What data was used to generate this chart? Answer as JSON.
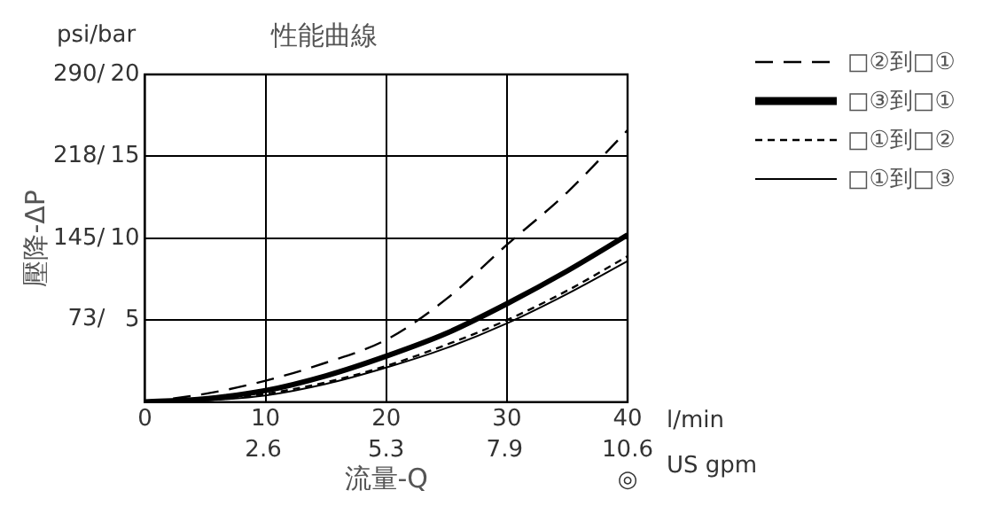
{
  "chart_data": {
    "type": "line",
    "title": "性能曲線",
    "xlabel": "流量-Q",
    "ylabel": "壓降-ΔP",
    "annotations": [
      "psi/bar",
      "l/min",
      "US gpm",
      "◎"
    ],
    "x": [
      0,
      5,
      10,
      15,
      20,
      25,
      30,
      35,
      40
    ],
    "series": [
      {
        "name": "□②到□①",
        "color": "#000000",
        "line_style": "dashed",
        "axis": "y2",
        "values": [
          0,
          0.5,
          1.3,
          2.4,
          3.8,
          6.3,
          9.6,
          12.8,
          16.6
        ]
      },
      {
        "name": "□③到□①",
        "color": "#000000",
        "line_style": "solid",
        "axis": "y2",
        "values": [
          0,
          0.2,
          0.7,
          1.6,
          2.8,
          4.2,
          6.0,
          8.0,
          10.2
        ]
      },
      {
        "name": "□①到□②",
        "color": "#000000",
        "line_style": "dotted",
        "axis": "y2",
        "values": [
          0,
          0.1,
          0.5,
          1.2,
          2.2,
          3.5,
          5.0,
          6.8,
          8.9
        ]
      },
      {
        "name": "□①到□③",
        "color": "#000000",
        "line_style": "solid",
        "axis": "y2",
        "values": [
          0,
          0.1,
          0.4,
          1.1,
          2.1,
          3.3,
          4.8,
          6.6,
          8.6
        ]
      }
    ],
    "xlim": [
      0,
      40
    ],
    "xticks": [
      0,
      10,
      20,
      30,
      40
    ],
    "x2lim": [
      0,
      10.6
    ],
    "x2ticks": [
      2.6,
      5.3,
      7.9,
      10.6
    ],
    "ylim": [
      0,
      290
    ],
    "yticks": [
      {
        "value": 73,
        "label": "73/"
      },
      {
        "value": 145,
        "label": "145/"
      },
      {
        "value": 218,
        "label": "218/"
      },
      {
        "value": 290,
        "label": "290/"
      }
    ],
    "y2lim": [
      0,
      20
    ],
    "y2ticks": [
      5,
      10,
      15,
      20
    ],
    "grid": true,
    "legend": "right",
    "marker": "none"
  }
}
